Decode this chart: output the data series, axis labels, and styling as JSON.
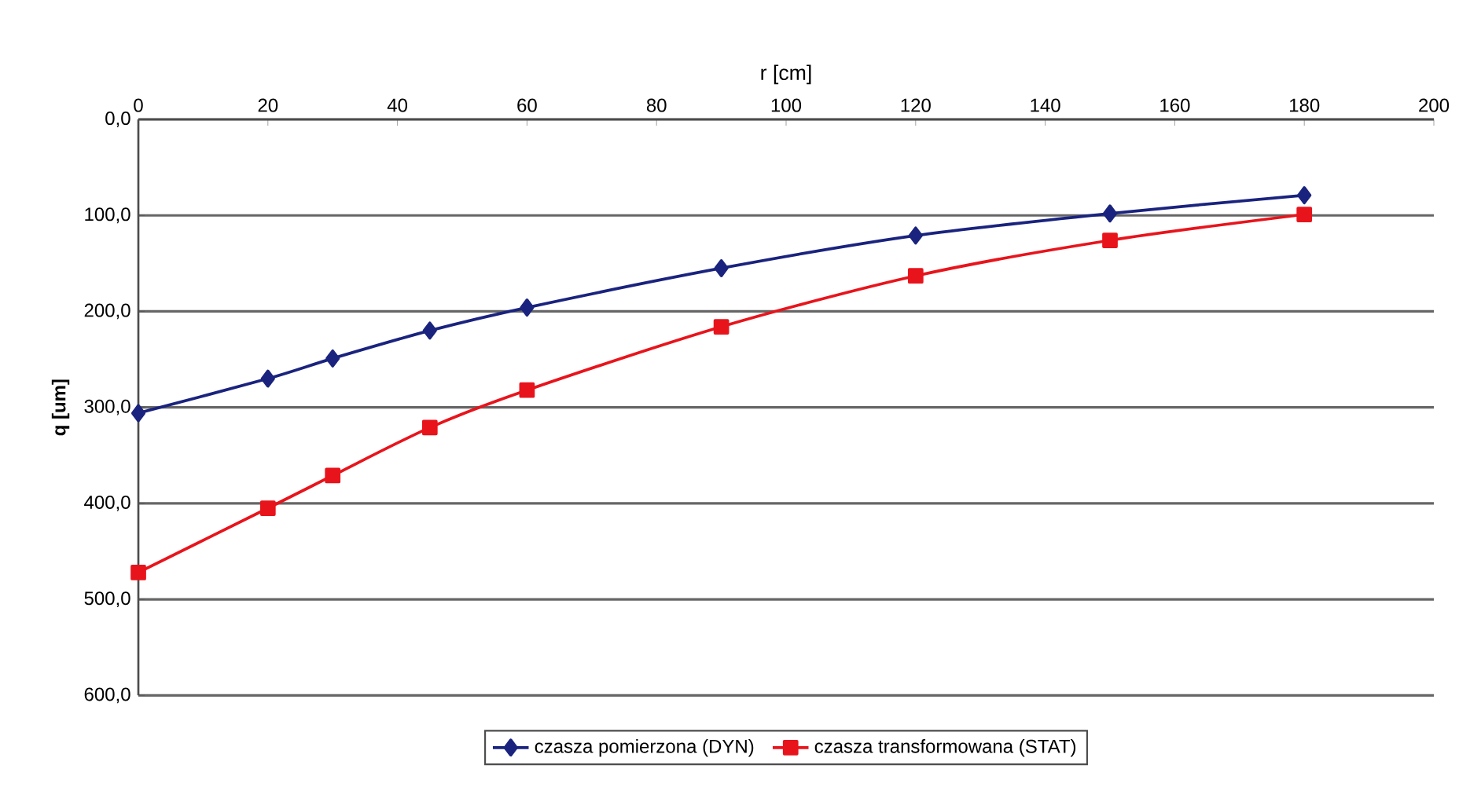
{
  "chart_data": {
    "type": "line",
    "xlabel": "r [cm]",
    "ylabel": "q [um]",
    "xlim": [
      0,
      200
    ],
    "ylim": [
      600,
      0
    ],
    "xticks": [
      0,
      20,
      40,
      60,
      80,
      100,
      120,
      140,
      160,
      180,
      200
    ],
    "yticks": [
      {
        "value": 0,
        "label": "0,0"
      },
      {
        "value": 100,
        "label": "100,0"
      },
      {
        "value": 200,
        "label": "200,0"
      },
      {
        "value": 300,
        "label": "300,0"
      },
      {
        "value": 400,
        "label": "400,0"
      },
      {
        "value": 500,
        "label": "500,0"
      },
      {
        "value": 600,
        "label": "600,0"
      }
    ],
    "grid": "y",
    "legend": "bottom",
    "line_style": "solid",
    "x": [
      0,
      20,
      30,
      45,
      60,
      90,
      120,
      150,
      180
    ],
    "series": [
      {
        "name": "czasza pomierzona (DYN)",
        "color": "#1a237e",
        "marker": "diamond",
        "values": [
          306,
          270,
          249,
          220,
          196,
          155,
          121,
          98,
          79
        ]
      },
      {
        "name": "czasza transformowana (STAT)",
        "color": "#e8141c",
        "marker": "square",
        "values": [
          472,
          405,
          371,
          321,
          282,
          216,
          163,
          126,
          99
        ]
      }
    ]
  }
}
